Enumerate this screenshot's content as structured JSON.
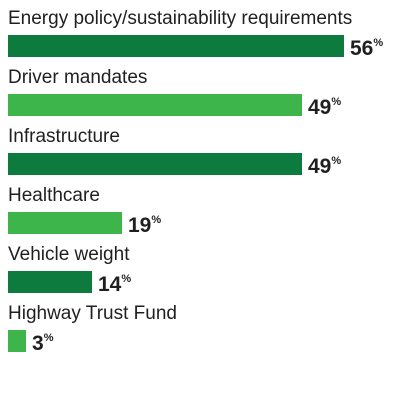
{
  "chart_data": {
    "type": "bar",
    "orientation": "horizontal",
    "categories": [
      "Energy policy/sustainability requirements",
      "Driver mandates",
      "Infrastructure",
      "Healthcare",
      "Vehicle weight",
      "Highway Trust Fund"
    ],
    "values": [
      56,
      49,
      49,
      19,
      14,
      3
    ],
    "value_labels": [
      "56",
      "49",
      "49",
      "19",
      "14",
      "3"
    ],
    "value_suffix": "%",
    "xlim": [
      0,
      56
    ],
    "grid": false,
    "legend": "none",
    "bar_colors": [
      "#0d7a3e",
      "#3db54a",
      "#0d7a3e",
      "#3db54a",
      "#0d7a3e",
      "#3db54a"
    ]
  }
}
